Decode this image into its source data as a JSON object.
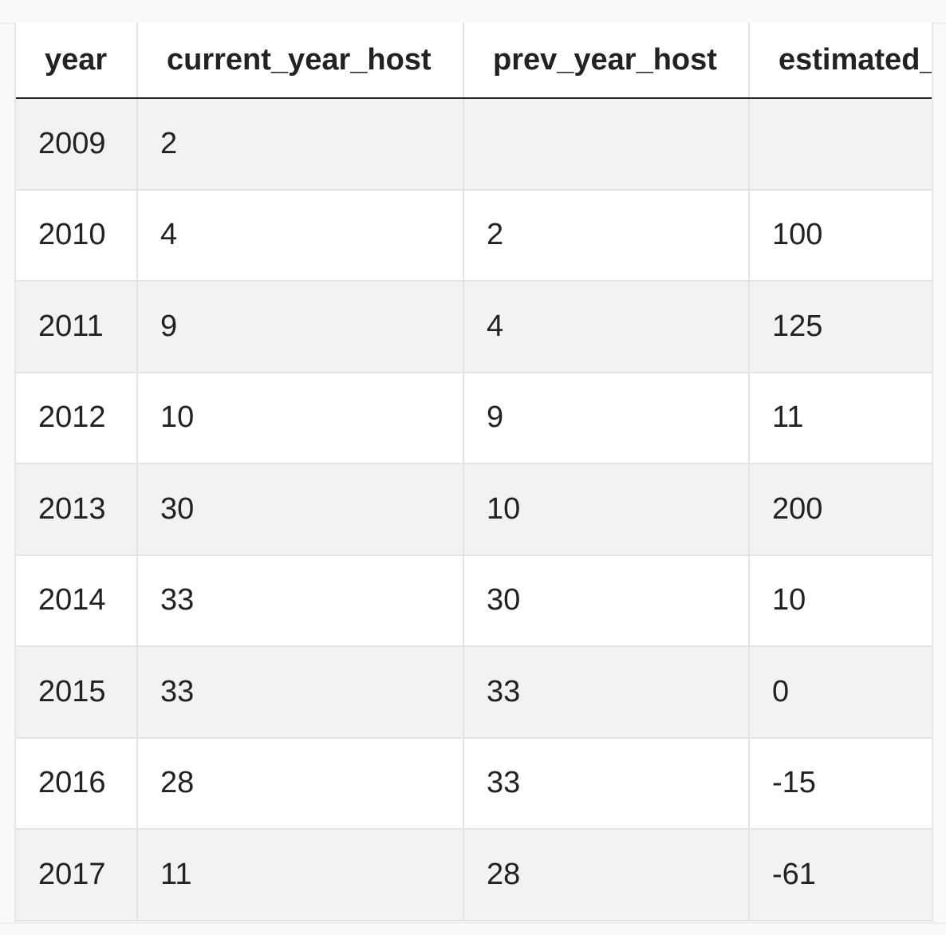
{
  "table": {
    "columns": [
      "year",
      "current_year_host",
      "prev_year_host",
      "estimated_"
    ],
    "rows": [
      [
        "2009",
        "2",
        "",
        ""
      ],
      [
        "2010",
        "4",
        "2",
        "100"
      ],
      [
        "2011",
        "9",
        "4",
        "125"
      ],
      [
        "2012",
        "10",
        "9",
        "11"
      ],
      [
        "2013",
        "30",
        "10",
        "200"
      ],
      [
        "2014",
        "33",
        "30",
        "10"
      ],
      [
        "2015",
        "33",
        "33",
        "0"
      ],
      [
        "2016",
        "28",
        "33",
        "-15"
      ],
      [
        "2017",
        "11",
        "28",
        "-61"
      ]
    ]
  }
}
